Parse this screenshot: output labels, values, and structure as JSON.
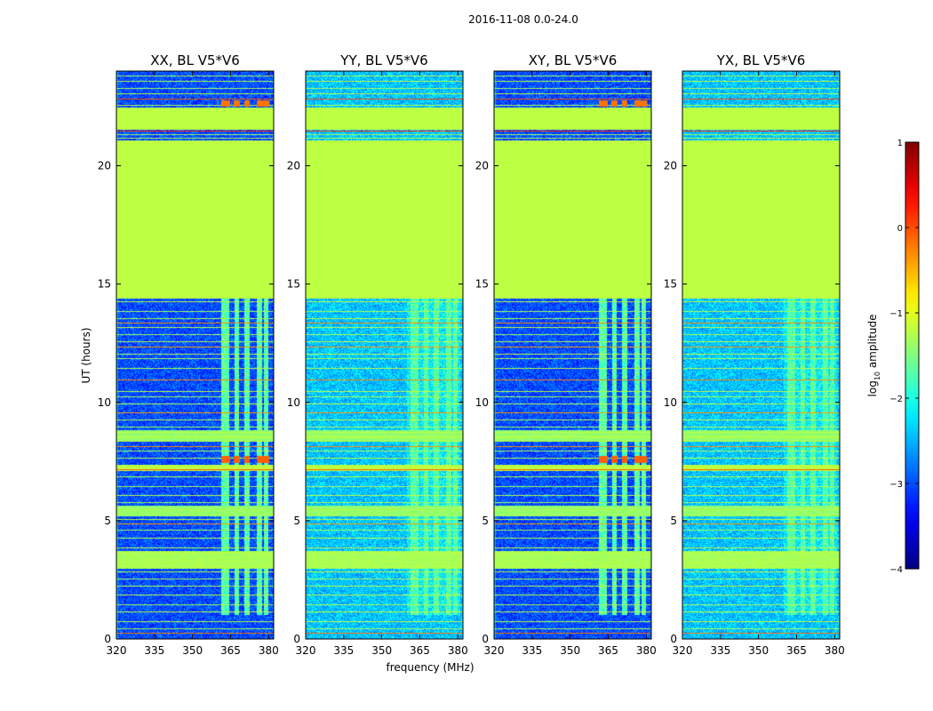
{
  "figure": {
    "suptitle": "2016-11-08 0.0-24.0",
    "xlabel": "frequency (MHz)",
    "ylabel": "UT (hours)"
  },
  "colorbar": {
    "label_prefix": "log",
    "label_sub": "10",
    "label_suffix": " amplitude",
    "range": [
      -4,
      1
    ],
    "ticks": [
      "1",
      "0",
      "−1",
      "−2",
      "−3",
      "−4"
    ],
    "tick_values": [
      1,
      0,
      -1,
      -2,
      -3,
      -4
    ],
    "colormap": "jet"
  },
  "chart_data": {
    "type": "heatmap",
    "axes": {
      "x_range": [
        320,
        382
      ],
      "y_range": [
        0,
        24
      ],
      "x_ticks": [
        320,
        335,
        350,
        365,
        380
      ],
      "y_ticks": [
        0,
        5,
        10,
        15,
        20
      ]
    },
    "panels": [
      {
        "title": "XX, BL V5*V6",
        "polarization": "XX",
        "band_strength": 1.0,
        "base_level": -3.0,
        "left_edge": true
      },
      {
        "title": "YY, BL V5*V6",
        "polarization": "YY",
        "band_strength": 0.35,
        "base_level": -2.4,
        "left_edge": false
      },
      {
        "title": "XY, BL V5*V6",
        "polarization": "XY",
        "band_strength": 1.0,
        "base_level": -3.0,
        "left_edge": true
      },
      {
        "title": "YX, BL V5*V6",
        "polarization": "YX",
        "band_strength": 0.35,
        "base_level": -2.4,
        "left_edge": false
      }
    ],
    "flagged_fill_level": -1.2,
    "flagged_time_blocks": [
      {
        "start": 14.45,
        "end": 21.05
      },
      {
        "start": 21.55,
        "end": 22.45
      }
    ],
    "rfi_band_mhz": [
      {
        "start": 361.5,
        "end": 364.5
      },
      {
        "start": 366.5,
        "end": 368.5
      },
      {
        "start": 370.5,
        "end": 372.5
      },
      {
        "start": 375.5,
        "end": 377.5
      },
      {
        "start": 378.0,
        "end": 380.0
      }
    ],
    "rfi_time_range": [
      1.0,
      14.45
    ],
    "horizontal_lines": [
      {
        "t": 0.25,
        "v": -0.2
      },
      {
        "t": 0.45,
        "v": -1.3
      },
      {
        "t": 0.75,
        "v": -1.2
      },
      {
        "t": 1.15,
        "v": -1.2
      },
      {
        "t": 1.45,
        "v": -1.3
      },
      {
        "t": 1.85,
        "v": -1.2
      },
      {
        "t": 2.25,
        "v": -1.2
      },
      {
        "t": 2.55,
        "v": -1.3
      },
      {
        "t": 2.85,
        "v": -1.2
      },
      {
        "t": 3.05,
        "v": -1.2
      },
      {
        "t": 3.25,
        "v": -1.2
      },
      {
        "t": 3.45,
        "v": -1.3
      },
      {
        "t": 3.65,
        "v": -1.2
      },
      {
        "t": 3.85,
        "v": -1.2
      },
      {
        "t": 4.25,
        "v": -1.2
      },
      {
        "t": 4.6,
        "v": -1.3
      },
      {
        "t": 4.85,
        "v": -0.4
      },
      {
        "t": 5.05,
        "v": -1.2
      },
      {
        "t": 5.25,
        "v": -1.3
      },
      {
        "t": 5.45,
        "v": -1.2
      },
      {
        "t": 5.75,
        "v": -1.3
      },
      {
        "t": 6.05,
        "v": -1.2
      },
      {
        "t": 6.45,
        "v": -1.3
      },
      {
        "t": 6.85,
        "v": -1.2
      },
      {
        "t": 7.15,
        "v": -0.1
      },
      {
        "t": 7.35,
        "v": -1.2
      },
      {
        "t": 7.65,
        "v": -1.2
      },
      {
        "t": 7.95,
        "v": -1.3
      },
      {
        "t": 8.15,
        "v": -0.3
      },
      {
        "t": 8.35,
        "v": -1.2
      },
      {
        "t": 8.55,
        "v": -1.1
      },
      {
        "t": 8.75,
        "v": -1.2
      },
      {
        "t": 8.95,
        "v": -1.3
      },
      {
        "t": 9.25,
        "v": -1.2
      },
      {
        "t": 9.55,
        "v": -0.4
      },
      {
        "t": 9.95,
        "v": -1.2
      },
      {
        "t": 10.25,
        "v": -1.3
      },
      {
        "t": 10.45,
        "v": -1.2
      },
      {
        "t": 10.95,
        "v": -0.3
      },
      {
        "t": 11.45,
        "v": -1.2
      },
      {
        "t": 11.85,
        "v": -1.3
      },
      {
        "t": 12.05,
        "v": -1.2
      },
      {
        "t": 12.35,
        "v": -0.4
      },
      {
        "t": 12.55,
        "v": -1.2
      },
      {
        "t": 12.85,
        "v": -1.3
      },
      {
        "t": 13.15,
        "v": -1.2
      },
      {
        "t": 13.35,
        "v": -0.3
      },
      {
        "t": 13.55,
        "v": -1.2
      },
      {
        "t": 13.85,
        "v": -1.3
      },
      {
        "t": 14.25,
        "v": -1.2
      },
      {
        "t": 14.4,
        "v": -1.2
      },
      {
        "t": 21.15,
        "v": -1.2
      },
      {
        "t": 21.3,
        "v": -1.3
      },
      {
        "t": 21.45,
        "v": 0.2
      },
      {
        "t": 22.55,
        "v": -1.2
      },
      {
        "t": 22.8,
        "v": 0.0
      },
      {
        "t": 23.05,
        "v": -1.2
      },
      {
        "t": 23.25,
        "v": -1.3
      },
      {
        "t": 23.55,
        "v": -1.2
      },
      {
        "t": 23.8,
        "v": -1.3
      }
    ],
    "wide_bright_bands": [
      {
        "start": 3.0,
        "end": 3.7,
        "v": -1.3
      },
      {
        "start": 5.2,
        "end": 5.6,
        "v": -1.4
      },
      {
        "start": 7.1,
        "end": 7.35,
        "v": -1.2
      },
      {
        "start": 8.4,
        "end": 8.8,
        "v": -1.4
      }
    ],
    "rfi_hot_rows": [
      {
        "start": 7.45,
        "end": 7.7,
        "v": -0.1
      },
      {
        "start": 22.5,
        "end": 22.75,
        "v": -0.2
      }
    ]
  }
}
